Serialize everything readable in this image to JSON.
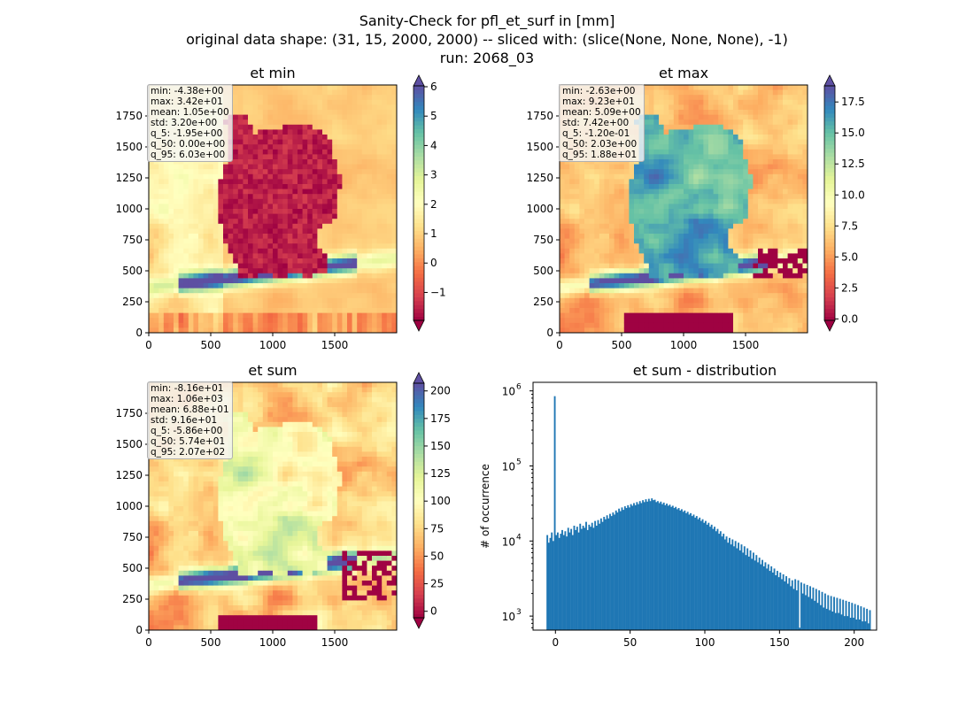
{
  "suptitle": {
    "line1": "Sanity-Check for pfl_et_surf in [mm]",
    "line2": "original data shape: (31, 15, 2000, 2000) -- sliced with: (slice(None, None, None), -1)",
    "line3": "run: 2068_03"
  },
  "panels": [
    {
      "title": "et min",
      "x_ticks": [
        "0",
        "500",
        "1000",
        "1500"
      ],
      "y_ticks": [
        "0",
        "250",
        "500",
        "750",
        "1000",
        "1250",
        "1500",
        "1750"
      ],
      "stats": [
        "min: -4.38e+00",
        "max: 3.42e+01",
        "mean: 1.05e+00",
        "std: 3.20e+00",
        "q_5: -1.95e+00",
        "q_50: 0.00e+00",
        "q_95: 6.03e+00"
      ],
      "colorbar": {
        "min": -1.95,
        "max": 6.03,
        "ticks": [
          -1,
          0,
          1,
          2,
          3,
          4,
          5,
          6
        ]
      }
    },
    {
      "title": "et max",
      "x_ticks": [
        "0",
        "500",
        "1000",
        "1500"
      ],
      "y_ticks": [
        "0",
        "250",
        "500",
        "750",
        "1000",
        "1250",
        "1500",
        "1750"
      ],
      "stats": [
        "min: -2.63e+00",
        "max: 9.23e+01",
        "mean: 5.09e+00",
        "std: 7.42e+00",
        "q_5: -1.20e-01",
        "q_50: 2.03e+00",
        "q_95: 1.88e+01"
      ],
      "colorbar": {
        "min": -0.12,
        "max": 18.8,
        "ticks": [
          0.0,
          2.5,
          5.0,
          7.5,
          10.0,
          12.5,
          15.0,
          17.5
        ],
        "tick_labels": [
          "0.0",
          "2.5",
          "5.0",
          "7.5",
          "10.0",
          "12.5",
          "15.0",
          "17.5"
        ]
      }
    },
    {
      "title": "et sum",
      "x_ticks": [
        "0",
        "500",
        "1000",
        "1500"
      ],
      "y_ticks": [
        "0",
        "250",
        "500",
        "750",
        "1000",
        "1250",
        "1500",
        "1750"
      ],
      "stats": [
        "min: -8.16e+01",
        "max: 1.06e+03",
        "mean: 6.88e+01",
        "std: 9.16e+01",
        "q_5: -5.86e+00",
        "q_50: 5.74e+01",
        "q_95: 2.07e+02"
      ],
      "colorbar": {
        "min": -5.86,
        "max": 207,
        "ticks": [
          0,
          25,
          50,
          75,
          100,
          125,
          150,
          175,
          200
        ]
      }
    }
  ],
  "colors": {
    "spectral": [
      "#9e0142",
      "#d53e4f",
      "#f46d43",
      "#fdae61",
      "#fee08b",
      "#ffffbf",
      "#e6f598",
      "#abdda4",
      "#66c2a5",
      "#3288bd",
      "#5e4fa2"
    ],
    "histogram": "#1f77b4"
  },
  "chart_data": {
    "type": "bar",
    "title": "et sum - distribution",
    "xlabel": "",
    "ylabel": "# of occurrence",
    "y_scale": "log",
    "xlim": [
      -15,
      215
    ],
    "ylim": [
      650,
      1300000
    ],
    "x_ticks": [
      0,
      50,
      100,
      150,
      200
    ],
    "y_tick_labels": [
      "10",
      "10",
      "10",
      "10"
    ],
    "y_tick_exponents": [
      "3",
      "4",
      "5",
      "6"
    ],
    "bin_start": -6,
    "bin_width": 1,
    "values": [
      12000,
      9500,
      11000,
      13000,
      10000,
      850000,
      12000,
      13000,
      11000,
      12500,
      14000,
      12000,
      13500,
      11500,
      15000,
      13000,
      14500,
      12000,
      16000,
      14000,
      15500,
      13000,
      17000,
      14500,
      16000,
      15000,
      18000,
      14000,
      16500,
      15500,
      17500,
      15000,
      18500,
      16000,
      19000,
      17000,
      20000,
      18000,
      21000,
      19500,
      22000,
      20000,
      23000,
      21500,
      24000,
      22500,
      25500,
      24000,
      27000,
      25000,
      28000,
      26000,
      29000,
      27500,
      30000,
      28000,
      31000,
      29500,
      32000,
      30000,
      33000,
      31000,
      34000,
      32000,
      35000,
      33000,
      36000,
      33500,
      36500,
      34000,
      37000,
      35000,
      35500,
      33000,
      34000,
      32000,
      33500,
      31000,
      32500,
      30000,
      31500,
      29500,
      30500,
      28500,
      29500,
      27500,
      28500,
      26500,
      27500,
      25500,
      26500,
      24500,
      25500,
      23500,
      24500,
      22500,
      23500,
      21500,
      22500,
      20500,
      21500,
      19500,
      20500,
      18500,
      19500,
      17500,
      18500,
      16500,
      17500,
      15500,
      16500,
      14500,
      15500,
      13500,
      14500,
      12500,
      13500,
      11500,
      12500,
      10500,
      11500,
      9500,
      11000,
      9000,
      10500,
      8500,
      10000,
      8000,
      9500,
      7500,
      9000,
      7000,
      8500,
      6500,
      8000,
      6200,
      7500,
      5800,
      7000,
      5500,
      6500,
      5200,
      6000,
      4900,
      5600,
      4600,
      5200,
      4300,
      4900,
      4000,
      4600,
      3800,
      4300,
      3500,
      4000,
      3300,
      3800,
      3100,
      3600,
      2900,
      3400,
      2700,
      3200,
      2500,
      3000,
      2300,
      3100,
      2200,
      3000,
      700,
      2800,
      2000,
      2700,
      1900,
      2600,
      1800,
      2500,
      1700,
      2400,
      1600,
      2300,
      1500,
      2200,
      1400,
      2100,
      1300,
      2000,
      1250,
      1900,
      1200,
      1850,
      1150,
      1800,
      1100,
      1750,
      1100,
      1700,
      1050,
      1650,
      1000,
      1600,
      1000,
      1550,
      950,
      1500,
      950,
      1450,
      900,
      1400,
      900,
      1350,
      850,
      1300,
      850,
      1250,
      800,
      1200
    ]
  }
}
